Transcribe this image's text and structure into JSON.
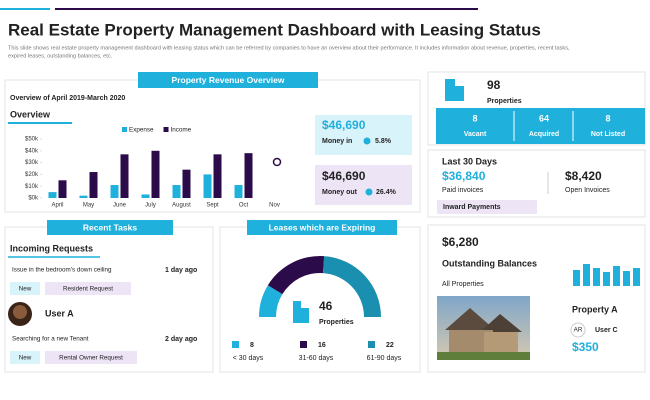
{
  "header": {
    "title": "Real Estate Property Management Dashboard with Leasing Status",
    "subtitle": [
      "This slide shows real estate property management dashboard with leasing status which can be referred by companies to have an overview about their performance. It includes information about revenue, properties, recent tasks,",
      "expired leases, outstanding balances, etc."
    ]
  },
  "revenue_panel": {
    "title": "Property Revenue Overview",
    "period": "Overview of April 2019-March 2020",
    "section": "Overview",
    "money_in": {
      "amount": "$46,690",
      "label": "Money in",
      "change": "5.8%"
    },
    "money_out": {
      "amount": "$46,690",
      "label": "Money out",
      "change": "26.4%"
    }
  },
  "chart_data": [
    {
      "type": "bar",
      "categories": [
        "April",
        "May",
        "June",
        "July",
        "August",
        "Sept",
        "Oct",
        "Nov"
      ],
      "series": [
        {
          "name": "Expense",
          "color": "#1fb0dc",
          "values": [
            5,
            2,
            11,
            3,
            11,
            20,
            11,
            null
          ]
        },
        {
          "name": "Income",
          "color": "#2b0b4a",
          "values": [
            15,
            22,
            37,
            40,
            24,
            37,
            38,
            null
          ]
        }
      ],
      "ylim": [
        0,
        50
      ],
      "yticks": [
        {
          "value": 0,
          "label": "$0k"
        },
        {
          "value": 10,
          "label": "$10k"
        },
        {
          "value": 20,
          "label": "$20k"
        },
        {
          "value": 30,
          "label": "$30k"
        },
        {
          "value": 40,
          "label": "$40k"
        },
        {
          "value": 50,
          "label": "$50k"
        }
      ]
    },
    {
      "type": "gauge",
      "title": "Leases which are Expiring",
      "categories": [
        "< 30 days",
        "31-60 days",
        "61-90 days"
      ],
      "values": [
        8,
        16,
        22
      ],
      "colors": [
        "#1fb0dc",
        "#2b0b4a",
        "#1a8fb0"
      ],
      "center_value": 46,
      "center_label": "Properties"
    }
  ],
  "properties": {
    "total": 98,
    "label": "Properties",
    "breakdown": [
      {
        "value": 8,
        "label": "Vacant"
      },
      {
        "value": 64,
        "label": "Acquired"
      },
      {
        "value": 8,
        "label": "Not Listed"
      }
    ]
  },
  "last_30_days": {
    "title": "Last 30 Days",
    "paid": {
      "amount": "$36,840",
      "label": "Paid invoices"
    },
    "open": {
      "amount": "$8,420",
      "label": "Open Invoices"
    },
    "tag": "Inward Payments"
  },
  "recent_tasks": {
    "title": "Recent Tasks",
    "section": "Incoming Requests",
    "user": "User A",
    "tasks": [
      {
        "text": "Issue in the bedroom's down ceiling",
        "time": "1 day ago",
        "tags": [
          "New",
          "Resident Request"
        ]
      },
      {
        "text": "Searching for a new Tenant",
        "time": "2 day ago",
        "tags": [
          "New",
          "Rental Owner Request"
        ]
      }
    ]
  },
  "outstanding": {
    "amount": "$6,280",
    "label": "Outstanding Balances",
    "scope": "All Properties",
    "property": {
      "name": "Property A",
      "initials": "AR",
      "user": "User C",
      "amount": "$350"
    }
  }
}
